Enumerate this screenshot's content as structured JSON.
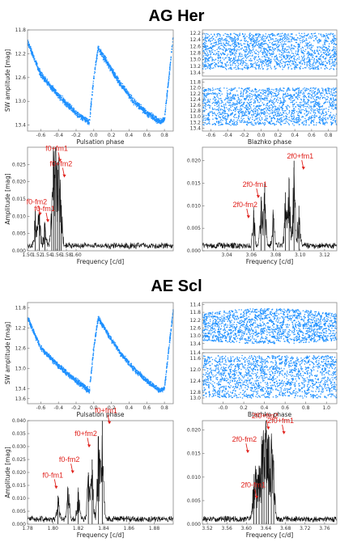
{
  "colors": {
    "scatter": "#1e90ff",
    "spectrum": "#111111",
    "annotation": "#e0201b",
    "frame": "#888888"
  },
  "sections": [
    {
      "title": "AG Her",
      "pulsation_curve": {
        "xlabel": "Pulsation phase",
        "ylabel": "SW amplitude [mag]",
        "xlim": [
          -0.75,
          0.9
        ],
        "ylim": [
          13.5,
          11.8
        ],
        "xticks": [
          [
            "-0.6",
            -0.6
          ],
          [
            "-0.4",
            -0.4
          ],
          [
            "-0.2",
            -0.2
          ],
          [
            "0.0",
            0.0
          ],
          [
            "0.2",
            0.2
          ],
          [
            "0.4",
            0.4
          ],
          [
            "0.6",
            0.6
          ],
          [
            "0.8",
            0.8
          ]
        ],
        "yticks": [
          [
            "11.8",
            11.8
          ],
          [
            "12.2",
            12.2
          ],
          [
            "12.6",
            12.6
          ],
          [
            "13.0",
            13.0
          ],
          [
            "13.4",
            13.4
          ]
        ]
      },
      "blazhko_top": {
        "ylim": [
          13.5,
          12.1
        ],
        "yticks": [
          [
            "12.2",
            12.2
          ],
          [
            "12.4",
            12.4
          ],
          [
            "12.6",
            12.6
          ],
          [
            "12.8",
            12.8
          ],
          [
            "13.0",
            13.0
          ],
          [
            "13.2",
            13.2
          ],
          [
            "13.4",
            13.4
          ]
        ]
      },
      "blazhko_bottom": {
        "xlabel": "Blazhko phase",
        "xlim": [
          -0.7,
          0.9
        ],
        "ylim": [
          13.5,
          11.7
        ],
        "xticks": [
          [
            "-0.6",
            -0.6
          ],
          [
            "-0.4",
            -0.4
          ],
          [
            "-0.2",
            -0.2
          ],
          [
            "0.0",
            0.0
          ],
          [
            "0.2",
            0.2
          ],
          [
            "0.4",
            0.4
          ],
          [
            "0.6",
            0.6
          ],
          [
            "0.8",
            0.8
          ]
        ],
        "yticks": [
          [
            "11.8",
            11.8
          ],
          [
            "12.0",
            12.0
          ],
          [
            "12.2",
            12.2
          ],
          [
            "12.4",
            12.4
          ],
          [
            "12.6",
            12.6
          ],
          [
            "12.8",
            12.8
          ],
          [
            "13.0",
            13.0
          ],
          [
            "13.2",
            13.2
          ],
          [
            "13.4",
            13.4
          ]
        ]
      },
      "spectrum_left": {
        "xlabel": "Frequency [c/d]",
        "ylabel": "Amplitude [mag]",
        "xlim": [
          1.5,
          1.8
        ],
        "ylim": [
          0,
          0.03
        ],
        "xticks": [
          [
            "1.50",
            1.5
          ],
          [
            "1.52",
            1.52
          ],
          [
            "1.54",
            1.54
          ],
          [
            "1.56",
            1.56
          ],
          [
            "1.58",
            1.58
          ],
          [
            "1.60",
            1.6
          ]
        ],
        "yticks": [
          [
            "0.000",
            0.0
          ],
          [
            "0.005",
            0.005
          ],
          [
            "0.010",
            0.01
          ],
          [
            "0.015",
            0.015
          ],
          [
            "0.020",
            0.02
          ],
          [
            "0.025",
            0.025
          ]
        ],
        "peaks": [
          [
            1.516,
            0.012
          ],
          [
            1.524,
            0.011
          ],
          [
            1.536,
            0.008
          ],
          [
            1.55,
            0.012
          ],
          [
            1.554,
            0.024
          ],
          [
            1.558,
            0.026
          ],
          [
            1.562,
            0.016
          ],
          [
            1.566,
            0.018
          ],
          [
            1.569,
            0.013
          ]
        ],
        "annotations": [
          {
            "label": "f0-fm2",
            "x": 1.519,
            "y": 0.0135
          },
          {
            "label": "f0-fm1",
            "x": 1.535,
            "y": 0.0115
          },
          {
            "label": "f0+fm1",
            "x": 1.56,
            "y": 0.029
          },
          {
            "label": "f0+fm2",
            "x": 1.569,
            "y": 0.0245
          }
        ]
      },
      "spectrum_right": {
        "xlabel": "Frequency [c/d]",
        "xlim": [
          3.02,
          3.13
        ],
        "ylim": [
          0,
          0.023
        ],
        "xticks": [
          [
            "3.04",
            3.04
          ],
          [
            "3.06",
            3.06
          ],
          [
            "3.08",
            3.08
          ],
          [
            "3.10",
            3.1
          ],
          [
            "3.12",
            3.12
          ]
        ],
        "yticks": [
          [
            "0.000",
            0.0
          ],
          [
            "0.005",
            0.005
          ],
          [
            "0.010",
            0.01
          ],
          [
            "0.015",
            0.015
          ],
          [
            "0.020",
            0.02
          ]
        ],
        "peaks": [
          [
            3.062,
            0.009
          ],
          [
            3.068,
            0.012
          ],
          [
            3.071,
            0.015
          ],
          [
            3.078,
            0.008
          ],
          [
            3.088,
            0.013
          ],
          [
            3.091,
            0.016
          ],
          [
            3.095,
            0.02
          ],
          [
            3.099,
            0.01
          ]
        ],
        "annotations": [
          {
            "label": "2f0+fm1",
            "x": 3.1,
            "y": 0.0205
          },
          {
            "label": "2f0-fm1",
            "x": 3.063,
            "y": 0.0142
          },
          {
            "label": "2f0-fm2",
            "x": 3.055,
            "y": 0.0097
          }
        ]
      }
    },
    {
      "title": "AE Scl",
      "pulsation_curve": {
        "xlabel": "Pulsation phase",
        "ylabel": "SW amplitude [mag]",
        "xlim": [
          -0.75,
          0.9
        ],
        "ylim": [
          13.7,
          11.7
        ],
        "xticks": [
          [
            "-0.6",
            -0.6
          ],
          [
            "-0.4",
            -0.4
          ],
          [
            "-0.2",
            -0.2
          ],
          [
            "0.0",
            0.0
          ],
          [
            "0.2",
            0.2
          ],
          [
            "0.4",
            0.4
          ],
          [
            "0.6",
            0.6
          ],
          [
            "0.8",
            0.8
          ]
        ],
        "yticks": [
          [
            "11.8",
            11.8
          ],
          [
            "12.2",
            12.2
          ],
          [
            "12.6",
            12.6
          ],
          [
            "13.0",
            13.0
          ],
          [
            "13.4",
            13.4
          ],
          [
            "13.6",
            13.6
          ]
        ]
      },
      "blazhko_top": {
        "ylim": [
          13.7,
          11.3
        ],
        "yticks": [
          [
            "11.4",
            11.4
          ],
          [
            "11.8",
            11.8
          ],
          [
            "12.2",
            12.2
          ],
          [
            "12.6",
            12.6
          ],
          [
            "13.0",
            13.0
          ],
          [
            "13.4",
            13.4
          ]
        ]
      },
      "blazhko_bottom": {
        "xlabel": "Blazhko phase",
        "xlim": [
          -0.2,
          1.1
        ],
        "ylim": [
          13.2,
          11.4
        ],
        "xticks": [
          [
            "-0.0",
            0.0
          ],
          [
            "0.2",
            0.2
          ],
          [
            "0.4",
            0.4
          ],
          [
            "0.6",
            0.6
          ],
          [
            "0.8",
            0.8
          ],
          [
            "1.0",
            1.0
          ]
        ],
        "yticks": [
          [
            "11.4",
            11.4
          ],
          [
            "11.6",
            11.6
          ],
          [
            "12.0",
            12.0
          ],
          [
            "12.4",
            12.4
          ],
          [
            "12.8",
            12.8
          ],
          [
            "13.0",
            13.0
          ]
        ]
      },
      "spectrum_left": {
        "xlabel": "Frequency [c/d]",
        "ylabel": "Amplitude [mag]",
        "xlim": [
          1.78,
          1.895
        ],
        "ylim": [
          0,
          0.04
        ],
        "xticks": [
          [
            "1.78",
            1.78
          ],
          [
            "1.80",
            1.8
          ],
          [
            "1.82",
            1.82
          ],
          [
            "1.84",
            1.84
          ],
          [
            "1.86",
            1.86
          ],
          [
            "1.88",
            1.88
          ]
        ],
        "yticks": [
          [
            "0.000",
            0.0
          ],
          [
            "0.005",
            0.005
          ],
          [
            "0.010",
            0.01
          ],
          [
            "0.015",
            0.015
          ],
          [
            "0.020",
            0.02
          ],
          [
            "0.025",
            0.025
          ],
          [
            "0.030",
            0.03
          ],
          [
            "0.035",
            0.035
          ],
          [
            "0.040",
            0.04
          ]
        ],
        "peaks": [
          [
            1.804,
            0.011
          ],
          [
            1.812,
            0.014
          ],
          [
            1.82,
            0.012
          ],
          [
            1.828,
            0.02
          ],
          [
            1.831,
            0.025
          ],
          [
            1.836,
            0.034
          ],
          [
            1.839,
            0.04
          ]
        ],
        "annotations": [
          {
            "label": "f0+fm1",
            "x": 1.842,
            "y": 0.043
          },
          {
            "label": "f0+fm2",
            "x": 1.826,
            "y": 0.034
          },
          {
            "label": "f0-fm2",
            "x": 1.813,
            "y": 0.024
          },
          {
            "label": "f0-fm1",
            "x": 1.8,
            "y": 0.018
          }
        ]
      },
      "spectrum_right": {
        "xlabel": "Frequency [c/d]",
        "xlim": [
          3.51,
          3.785
        ],
        "ylim": [
          0,
          0.022
        ],
        "xticks": [
          [
            "3.52",
            3.52
          ],
          [
            "3.56",
            3.56
          ],
          [
            "3.60",
            3.6
          ],
          [
            "3.64",
            3.64
          ],
          [
            "3.68",
            3.68
          ],
          [
            "3.72",
            3.72
          ],
          [
            "3.76",
            3.76
          ]
        ],
        "yticks": [
          [
            "0.000",
            0.0
          ],
          [
            "0.005",
            0.005
          ],
          [
            "0.010",
            0.01
          ],
          [
            "0.015",
            0.015
          ],
          [
            "0.020",
            0.02
          ]
        ],
        "peaks": [
          [
            3.615,
            0.008
          ],
          [
            3.62,
            0.011
          ],
          [
            3.626,
            0.012
          ],
          [
            3.632,
            0.017
          ],
          [
            3.636,
            0.018
          ],
          [
            3.641,
            0.02
          ],
          [
            3.645,
            0.019
          ],
          [
            3.651,
            0.018
          ],
          [
            3.656,
            0.012
          ]
        ],
        "annotations": [
          {
            "label": "2f0+fm2",
            "x": 3.638,
            "y": 0.0225
          },
          {
            "label": "2f0+fm1",
            "x": 3.67,
            "y": 0.0215
          },
          {
            "label": "2f0-fm2",
            "x": 3.596,
            "y": 0.0175
          },
          {
            "label": "2f0-fm1",
            "x": 3.614,
            "y": 0.0078
          }
        ]
      }
    }
  ],
  "chart_data": [
    {
      "type": "scatter",
      "object": "AG Her",
      "xlabel": "Pulsation phase",
      "ylabel": "SW amplitude [mag]",
      "xlim": [
        -0.75,
        0.9
      ],
      "ylim": [
        13.5,
        11.8
      ],
      "y_inverted": true,
      "curve": {
        "x": [
          -0.75,
          -0.6,
          -0.4,
          -0.2,
          -0.05,
          0.0,
          0.05,
          0.15,
          0.3,
          0.45,
          0.6,
          0.75,
          0.8,
          0.85,
          0.9
        ],
        "y": [
          12.0,
          12.55,
          12.9,
          13.2,
          13.35,
          12.6,
          12.1,
          12.35,
          12.7,
          13.0,
          13.2,
          13.35,
          13.3,
          12.6,
          11.9
        ]
      }
    },
    {
      "type": "scatter",
      "object": "AG Her",
      "panel": "Blazhko (two bands)",
      "xlabel": "Blazhko phase",
      "xlim": [
        -0.7,
        0.9
      ],
      "bands": [
        {
          "y_range": [
            12.2,
            13.3
          ]
        },
        {
          "y_range": [
            12.0,
            13.3
          ]
        }
      ]
    },
    {
      "type": "line",
      "object": "AG Her",
      "xlabel": "Frequency [c/d]",
      "ylabel": "Amplitude [mag]",
      "xlim": [
        1.5,
        1.8
      ],
      "ylim": [
        0,
        0.03
      ],
      "peaks": {
        "x": [
          1.516,
          1.524,
          1.536,
          1.55,
          1.554,
          1.558,
          1.562,
          1.566,
          1.569
        ],
        "y": [
          0.012,
          0.011,
          0.008,
          0.012,
          0.024,
          0.026,
          0.016,
          0.018,
          0.013
        ]
      },
      "annotations": [
        "f0-fm2",
        "f0-fm1",
        "f0+fm1",
        "f0+fm2"
      ]
    },
    {
      "type": "line",
      "object": "AG Her",
      "xlabel": "Frequency [c/d]",
      "xlim": [
        3.02,
        3.13
      ],
      "ylim": [
        0,
        0.023
      ],
      "peaks": {
        "x": [
          3.062,
          3.068,
          3.071,
          3.078,
          3.088,
          3.091,
          3.095,
          3.099
        ],
        "y": [
          0.009,
          0.012,
          0.015,
          0.008,
          0.013,
          0.016,
          0.02,
          0.01
        ]
      },
      "annotations": [
        "2f0+fm1",
        "2f0-fm1",
        "2f0-fm2"
      ]
    },
    {
      "type": "scatter",
      "object": "AE Scl",
      "xlabel": "Pulsation phase",
      "ylabel": "SW amplitude [mag]",
      "xlim": [
        -0.75,
        0.9
      ],
      "ylim": [
        13.7,
        11.7
      ],
      "y_inverted": true,
      "curve": {
        "x": [
          -0.75,
          -0.6,
          -0.4,
          -0.2,
          -0.05,
          0.0,
          0.05,
          0.15,
          0.3,
          0.45,
          0.6,
          0.75,
          0.8,
          0.85,
          0.9
        ],
        "y": [
          12.0,
          12.6,
          12.95,
          13.25,
          13.45,
          12.6,
          12.0,
          12.3,
          12.7,
          13.0,
          13.25,
          13.45,
          13.4,
          12.6,
          11.85
        ]
      }
    },
    {
      "type": "scatter",
      "object": "AE Scl",
      "panel": "Blazhko (two bands)",
      "xlabel": "Blazhko phase",
      "xlim": [
        -0.2,
        1.1
      ],
      "bands": [
        {
          "y_range": [
            11.6,
            13.4
          ]
        },
        {
          "y_range": [
            11.5,
            13.0
          ]
        }
      ]
    },
    {
      "type": "line",
      "object": "AE Scl",
      "xlabel": "Frequency [c/d]",
      "ylabel": "Amplitude [mag]",
      "xlim": [
        1.78,
        1.895
      ],
      "ylim": [
        0,
        0.04
      ],
      "peaks": {
        "x": [
          1.804,
          1.812,
          1.82,
          1.828,
          1.831,
          1.836,
          1.839
        ],
        "y": [
          0.011,
          0.014,
          0.012,
          0.02,
          0.025,
          0.034,
          0.04
        ]
      },
      "annotations": [
        "f0+fm1",
        "f0+fm2",
        "f0-fm2",
        "f0-fm1"
      ]
    },
    {
      "type": "line",
      "object": "AE Scl",
      "xlabel": "Frequency [c/d]",
      "xlim": [
        3.51,
        3.785
      ],
      "ylim": [
        0,
        0.022
      ],
      "peaks": {
        "x": [
          3.615,
          3.62,
          3.626,
          3.632,
          3.636,
          3.641,
          3.645,
          3.651,
          3.656
        ],
        "y": [
          0.008,
          0.011,
          0.012,
          0.017,
          0.018,
          0.02,
          0.019,
          0.018,
          0.012
        ]
      },
      "annotations": [
        "2f0+fm2",
        "2f0+fm1",
        "2f0-fm2",
        "2f0-fm1"
      ]
    }
  ]
}
